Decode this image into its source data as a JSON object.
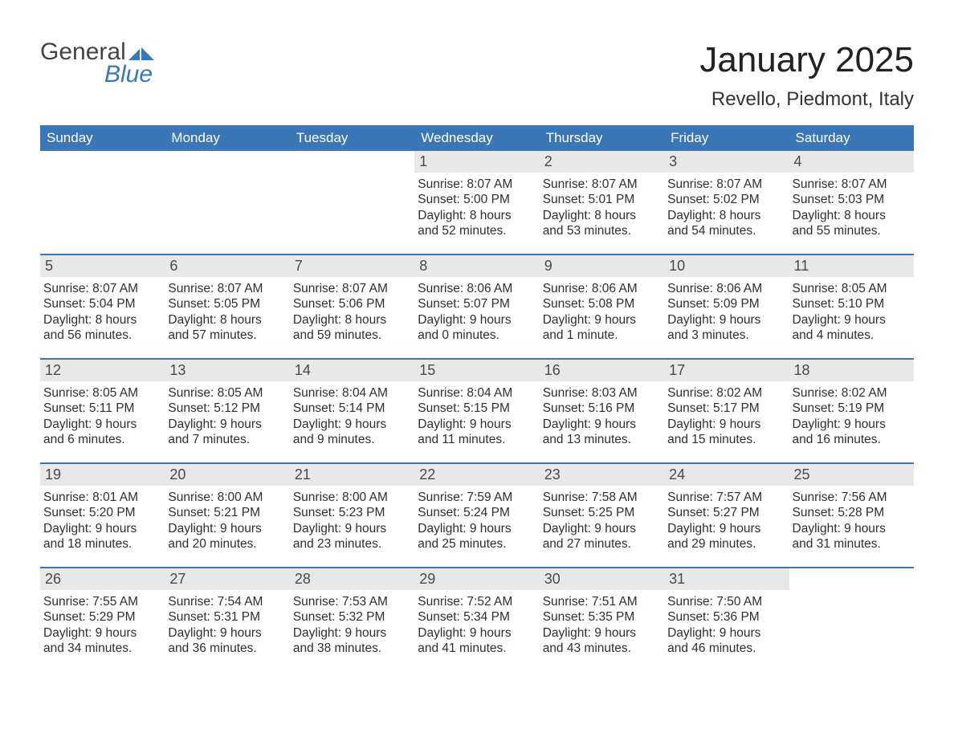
{
  "logo": {
    "text1": "General",
    "text2": "Blue",
    "arrow_color": "#3b77b7"
  },
  "title": "January 2025",
  "location": "Revello, Piedmont, Italy",
  "colors": {
    "header_bg": "#3b77b7",
    "header_text": "#ffffff",
    "daynum_bg": "#e8e8e8",
    "body_text": "#2f2f2f",
    "page_bg": "#ffffff"
  },
  "weekdays": [
    "Sunday",
    "Monday",
    "Tuesday",
    "Wednesday",
    "Thursday",
    "Friday",
    "Saturday"
  ],
  "labels": {
    "sunrise": "Sunrise: ",
    "sunset": "Sunset: ",
    "daylight": "Daylight: "
  },
  "weeks": [
    [
      null,
      null,
      null,
      {
        "n": "1",
        "sunrise": "8:07 AM",
        "sunset": "5:00 PM",
        "daylight1": "8 hours",
        "daylight2": "and 52 minutes."
      },
      {
        "n": "2",
        "sunrise": "8:07 AM",
        "sunset": "5:01 PM",
        "daylight1": "8 hours",
        "daylight2": "and 53 minutes."
      },
      {
        "n": "3",
        "sunrise": "8:07 AM",
        "sunset": "5:02 PM",
        "daylight1": "8 hours",
        "daylight2": "and 54 minutes."
      },
      {
        "n": "4",
        "sunrise": "8:07 AM",
        "sunset": "5:03 PM",
        "daylight1": "8 hours",
        "daylight2": "and 55 minutes."
      }
    ],
    [
      {
        "n": "5",
        "sunrise": "8:07 AM",
        "sunset": "5:04 PM",
        "daylight1": "8 hours",
        "daylight2": "and 56 minutes."
      },
      {
        "n": "6",
        "sunrise": "8:07 AM",
        "sunset": "5:05 PM",
        "daylight1": "8 hours",
        "daylight2": "and 57 minutes."
      },
      {
        "n": "7",
        "sunrise": "8:07 AM",
        "sunset": "5:06 PM",
        "daylight1": "8 hours",
        "daylight2": "and 59 minutes."
      },
      {
        "n": "8",
        "sunrise": "8:06 AM",
        "sunset": "5:07 PM",
        "daylight1": "9 hours",
        "daylight2": "and 0 minutes."
      },
      {
        "n": "9",
        "sunrise": "8:06 AM",
        "sunset": "5:08 PM",
        "daylight1": "9 hours",
        "daylight2": "and 1 minute."
      },
      {
        "n": "10",
        "sunrise": "8:06 AM",
        "sunset": "5:09 PM",
        "daylight1": "9 hours",
        "daylight2": "and 3 minutes."
      },
      {
        "n": "11",
        "sunrise": "8:05 AM",
        "sunset": "5:10 PM",
        "daylight1": "9 hours",
        "daylight2": "and 4 minutes."
      }
    ],
    [
      {
        "n": "12",
        "sunrise": "8:05 AM",
        "sunset": "5:11 PM",
        "daylight1": "9 hours",
        "daylight2": "and 6 minutes."
      },
      {
        "n": "13",
        "sunrise": "8:05 AM",
        "sunset": "5:12 PM",
        "daylight1": "9 hours",
        "daylight2": "and 7 minutes."
      },
      {
        "n": "14",
        "sunrise": "8:04 AM",
        "sunset": "5:14 PM",
        "daylight1": "9 hours",
        "daylight2": "and 9 minutes."
      },
      {
        "n": "15",
        "sunrise": "8:04 AM",
        "sunset": "5:15 PM",
        "daylight1": "9 hours",
        "daylight2": "and 11 minutes."
      },
      {
        "n": "16",
        "sunrise": "8:03 AM",
        "sunset": "5:16 PM",
        "daylight1": "9 hours",
        "daylight2": "and 13 minutes."
      },
      {
        "n": "17",
        "sunrise": "8:02 AM",
        "sunset": "5:17 PM",
        "daylight1": "9 hours",
        "daylight2": "and 15 minutes."
      },
      {
        "n": "18",
        "sunrise": "8:02 AM",
        "sunset": "5:19 PM",
        "daylight1": "9 hours",
        "daylight2": "and 16 minutes."
      }
    ],
    [
      {
        "n": "19",
        "sunrise": "8:01 AM",
        "sunset": "5:20 PM",
        "daylight1": "9 hours",
        "daylight2": "and 18 minutes."
      },
      {
        "n": "20",
        "sunrise": "8:00 AM",
        "sunset": "5:21 PM",
        "daylight1": "9 hours",
        "daylight2": "and 20 minutes."
      },
      {
        "n": "21",
        "sunrise": "8:00 AM",
        "sunset": "5:23 PM",
        "daylight1": "9 hours",
        "daylight2": "and 23 minutes."
      },
      {
        "n": "22",
        "sunrise": "7:59 AM",
        "sunset": "5:24 PM",
        "daylight1": "9 hours",
        "daylight2": "and 25 minutes."
      },
      {
        "n": "23",
        "sunrise": "7:58 AM",
        "sunset": "5:25 PM",
        "daylight1": "9 hours",
        "daylight2": "and 27 minutes."
      },
      {
        "n": "24",
        "sunrise": "7:57 AM",
        "sunset": "5:27 PM",
        "daylight1": "9 hours",
        "daylight2": "and 29 minutes."
      },
      {
        "n": "25",
        "sunrise": "7:56 AM",
        "sunset": "5:28 PM",
        "daylight1": "9 hours",
        "daylight2": "and 31 minutes."
      }
    ],
    [
      {
        "n": "26",
        "sunrise": "7:55 AM",
        "sunset": "5:29 PM",
        "daylight1": "9 hours",
        "daylight2": "and 34 minutes."
      },
      {
        "n": "27",
        "sunrise": "7:54 AM",
        "sunset": "5:31 PM",
        "daylight1": "9 hours",
        "daylight2": "and 36 minutes."
      },
      {
        "n": "28",
        "sunrise": "7:53 AM",
        "sunset": "5:32 PM",
        "daylight1": "9 hours",
        "daylight2": "and 38 minutes."
      },
      {
        "n": "29",
        "sunrise": "7:52 AM",
        "sunset": "5:34 PM",
        "daylight1": "9 hours",
        "daylight2": "and 41 minutes."
      },
      {
        "n": "30",
        "sunrise": "7:51 AM",
        "sunset": "5:35 PM",
        "daylight1": "9 hours",
        "daylight2": "and 43 minutes."
      },
      {
        "n": "31",
        "sunrise": "7:50 AM",
        "sunset": "5:36 PM",
        "daylight1": "9 hours",
        "daylight2": "and 46 minutes."
      },
      null
    ]
  ]
}
